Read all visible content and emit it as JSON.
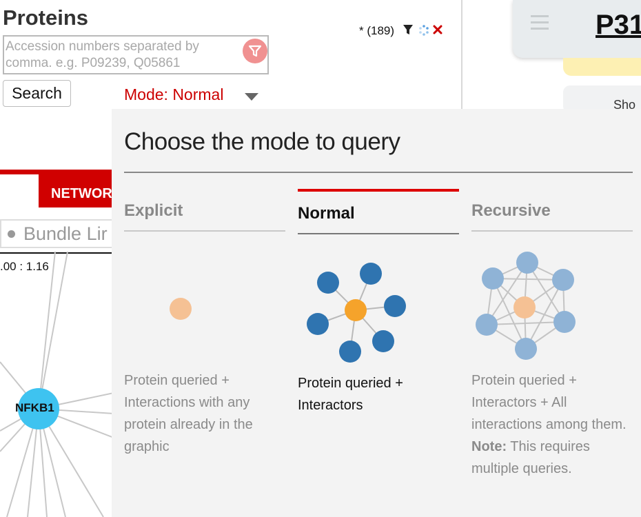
{
  "proteins_panel": {
    "title": "Proteins",
    "search_placeholder": "Accession numbers separated by comma. e.g. P09239, Q05861",
    "search_button": "Search",
    "count": "* (189)",
    "mode_label": "Mode: Normal",
    "icons": [
      "filter-icon",
      "spinner-icon",
      "close-icon",
      "funnel-icon",
      "dropdown-caret-icon"
    ]
  },
  "right_panel": {
    "title": "P31",
    "show_label": "Sho"
  },
  "network_panel": {
    "tab_label": "NETWOR",
    "bundle_label": "Bundle Lir",
    "ratio": ".00 : 1.16",
    "node_label": "NFKB1"
  },
  "mode_popup": {
    "title": "Choose the mode to query",
    "options": [
      {
        "label": "Explicit",
        "description": "Protein queried + Interactions with any protein already in the graphic",
        "selected": false
      },
      {
        "label": "Normal",
        "description": "Protein queried + Interactors",
        "selected": true
      },
      {
        "label": "Recursive",
        "description": "Protein queried + Interactors + All interactions among them.",
        "note_label": "Note:",
        "note_text": " This requires multiple queries.",
        "selected": false
      }
    ]
  },
  "colors": {
    "accent_red": "#dd0000",
    "node_orange": "#f5a32b",
    "node_blue": "#2f74b0",
    "node_light_blue": "#8fb3d6",
    "nfkb_node": "#3ec3f0"
  }
}
